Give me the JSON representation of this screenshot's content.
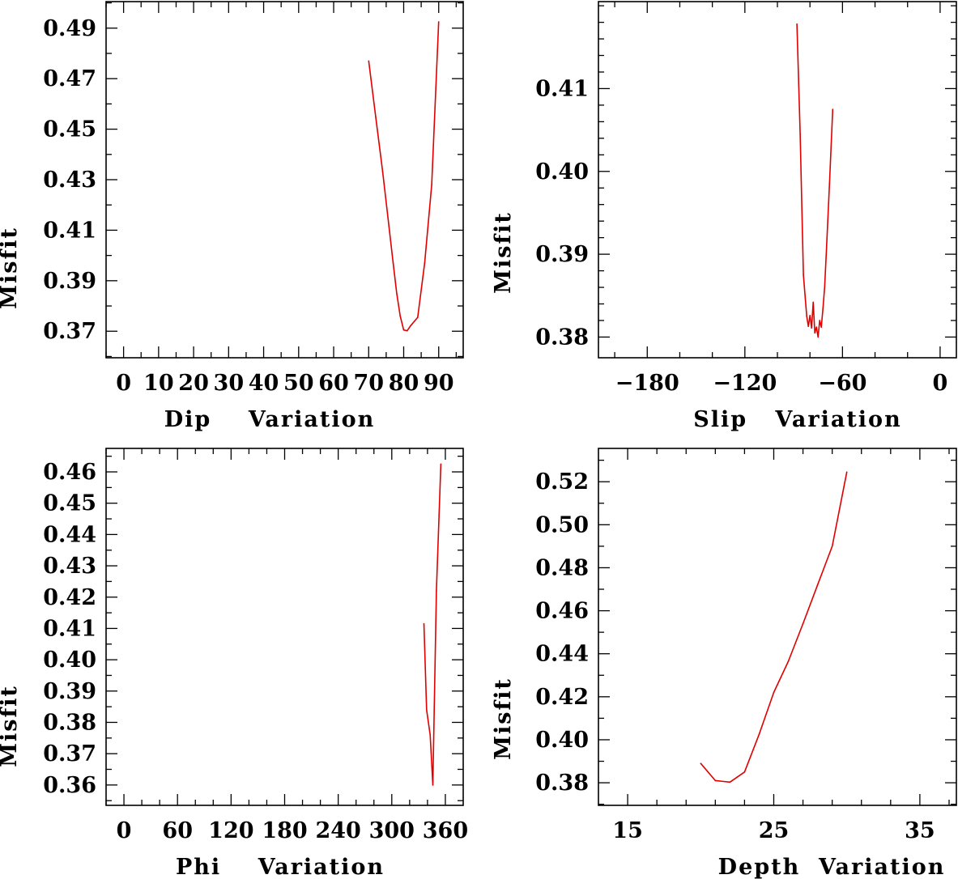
{
  "colors": {
    "line": "#e00000",
    "axes": "#000000",
    "background": "#ffffff"
  },
  "chart_data": [
    {
      "id": "dip",
      "type": "line",
      "title": "",
      "xlabel": "Dip    Variation",
      "ylabel": "Misfit",
      "xlim": [
        -5,
        97
      ],
      "ylim": [
        0.3595,
        0.5005
      ],
      "xticks_labeled": [
        0,
        10,
        20,
        30,
        40,
        50,
        60,
        70,
        80,
        90
      ],
      "xtick_labels": [
        "0",
        "10",
        "20",
        "30",
        "40",
        "50",
        "60",
        "70",
        "80",
        "90"
      ],
      "xticks_minor": [
        -5,
        5,
        15,
        25,
        35,
        45,
        55,
        65,
        75,
        85,
        95
      ],
      "yticks_labeled": [
        0.37,
        0.39,
        0.41,
        0.43,
        0.45,
        0.47,
        0.49
      ],
      "ytick_labels": [
        "0.37",
        "0.39",
        "0.41",
        "0.43",
        "0.45",
        "0.47",
        "0.49"
      ],
      "yticks_minor": [
        0.36,
        0.38,
        0.4,
        0.42,
        0.44,
        0.46,
        0.48,
        0.5
      ],
      "grid": false,
      "series": [
        {
          "name": "misfit",
          "x": [
            70,
            72,
            74,
            76,
            77,
            78,
            79,
            80,
            81,
            82,
            84,
            86,
            88,
            90
          ],
          "y": [
            0.477,
            0.455,
            0.433,
            0.409,
            0.397,
            0.385,
            0.376,
            0.3705,
            0.3702,
            0.3722,
            0.3755,
            0.397,
            0.428,
            0.4925
          ]
        }
      ]
    },
    {
      "id": "slip",
      "type": "line",
      "title": "",
      "xlabel": "Slip   Variation",
      "ylabel": "Misfit",
      "xlim": [
        -210,
        10
      ],
      "ylim": [
        0.3775,
        0.4205
      ],
      "xticks_labeled": [
        -180,
        -120,
        -60,
        0
      ],
      "xtick_labels": [
        "−180",
        "−120",
        "−60",
        "0"
      ],
      "xticks_minor": [
        -200,
        -160,
        -140,
        -100,
        -80,
        -40,
        -20
      ],
      "yticks_labeled": [
        0.38,
        0.39,
        0.4,
        0.41
      ],
      "ytick_labels": [
        "0.38",
        "0.39",
        "0.40",
        "0.41"
      ],
      "yticks_minor": [
        0.382,
        0.384,
        0.386,
        0.388,
        0.392,
        0.394,
        0.396,
        0.398,
        0.402,
        0.404,
        0.406,
        0.408,
        0.412,
        0.414,
        0.416,
        0.418,
        0.42
      ],
      "grid": false,
      "series": [
        {
          "name": "misfit",
          "x": [
            -88,
            -86,
            -84,
            -82,
            -81,
            -80,
            -79,
            -78,
            -77,
            -76,
            -75,
            -74,
            -73,
            -72,
            -71,
            -70,
            -68,
            -66
          ],
          "y": [
            0.4178,
            0.4045,
            0.3875,
            0.3825,
            0.3813,
            0.3826,
            0.3811,
            0.3842,
            0.3805,
            0.3812,
            0.38,
            0.382,
            0.3812,
            0.3835,
            0.386,
            0.39,
            0.3985,
            0.4075
          ]
        }
      ]
    },
    {
      "id": "phi",
      "type": "line",
      "title": "",
      "xlabel": "Phi    Variation",
      "ylabel": "Misfit",
      "xlim": [
        -20,
        380
      ],
      "ylim": [
        0.3535,
        0.4675
      ],
      "xticks_labeled": [
        0,
        60,
        120,
        180,
        240,
        300,
        360
      ],
      "xtick_labels": [
        "0",
        "60",
        "120",
        "180",
        "240",
        "300",
        "360"
      ],
      "xticks_minor": [
        -20,
        20,
        40,
        80,
        100,
        140,
        160,
        200,
        220,
        260,
        280,
        320,
        340
      ],
      "yticks_labeled": [
        0.36,
        0.37,
        0.38,
        0.39,
        0.4,
        0.41,
        0.42,
        0.43,
        0.44,
        0.45,
        0.46
      ],
      "ytick_labels": [
        "0.36",
        "0.37",
        "0.38",
        "0.39",
        "0.40",
        "0.41",
        "0.42",
        "0.43",
        "0.44",
        "0.45",
        "0.46"
      ],
      "yticks_minor": [
        0.355,
        0.365,
        0.375,
        0.385,
        0.395,
        0.405,
        0.415,
        0.425,
        0.435,
        0.445,
        0.455,
        0.465
      ],
      "grid": false,
      "series": [
        {
          "name": "misfit",
          "x": [
            336,
            339,
            343,
            346,
            350,
            355
          ],
          "y": [
            0.4115,
            0.384,
            0.376,
            0.36,
            0.422,
            0.4625
          ]
        }
      ]
    },
    {
      "id": "depth",
      "type": "line",
      "title": "",
      "xlabel": "Depth  Variation",
      "ylabel": "Misfit",
      "xlim": [
        13,
        37.5
      ],
      "ylim": [
        0.3695,
        0.5355
      ],
      "xticks_labeled": [
        15,
        25,
        35
      ],
      "xtick_labels": [
        "15",
        "25",
        "35"
      ],
      "xticks_minor": [
        17,
        19,
        21,
        23,
        27,
        29,
        31,
        33,
        37
      ],
      "yticks_labeled": [
        0.38,
        0.4,
        0.42,
        0.44,
        0.46,
        0.48,
        0.5,
        0.52
      ],
      "ytick_labels": [
        "0.38",
        "0.40",
        "0.42",
        "0.44",
        "0.46",
        "0.48",
        "0.50",
        "0.52"
      ],
      "yticks_minor": [
        0.37,
        0.39,
        0.41,
        0.43,
        0.45,
        0.47,
        0.49,
        0.51,
        0.53
      ],
      "grid": false,
      "series": [
        {
          "name": "misfit",
          "x": [
            20,
            21,
            22,
            23,
            24,
            25,
            26,
            27,
            28,
            29,
            30
          ],
          "y": [
            0.389,
            0.381,
            0.3803,
            0.385,
            0.4025,
            0.422,
            0.4365,
            0.454,
            0.472,
            0.49,
            0.5245
          ]
        }
      ]
    }
  ]
}
